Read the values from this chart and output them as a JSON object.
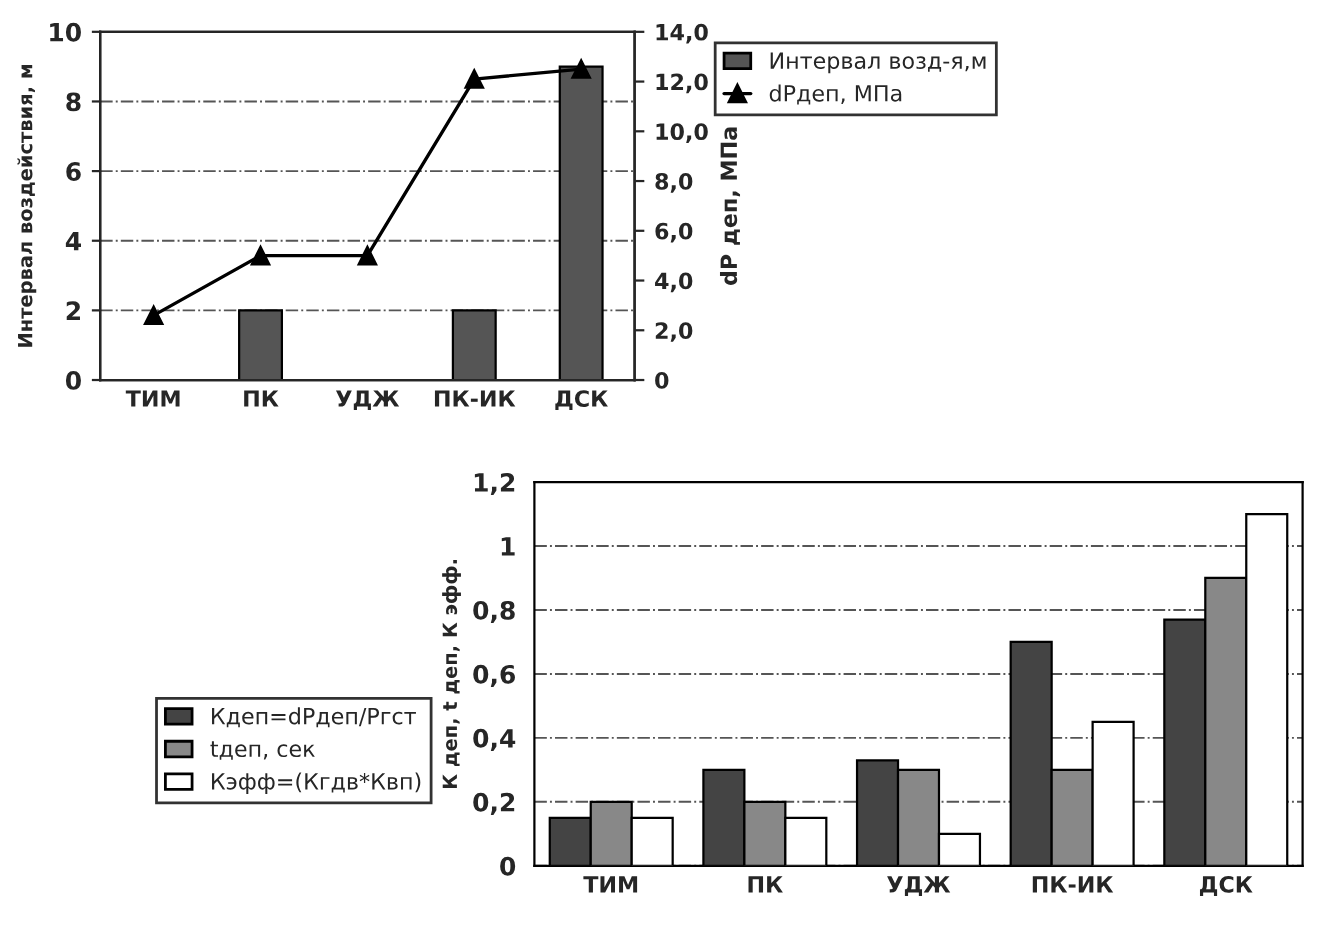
{
  "chart_data": [
    {
      "type": "bar",
      "categories": [
        "ТИМ",
        "ПК",
        "УДЖ",
        "ПК-ИК",
        "ДСК"
      ],
      "ylabel": "Интервал воздействия, м",
      "y2label": "dP деп, МПа",
      "ylim": [
        0,
        10
      ],
      "yticks": [
        0,
        2,
        4,
        6,
        8,
        10
      ],
      "y2lim": [
        0,
        14
      ],
      "y2ticks": [
        0,
        {
          "value": 2,
          "label": "2,0"
        },
        {
          "value": 4,
          "label": "4,0"
        },
        {
          "value": 6,
          "label": "6,0"
        },
        {
          "value": 8,
          "label": "8,0"
        },
        {
          "value": 10,
          "label": "10,0"
        },
        {
          "value": 12,
          "label": "12,0"
        },
        {
          "value": 14,
          "label": "14,0"
        }
      ],
      "series": [
        {
          "name": "Интервал возд-я,м",
          "type": "bar",
          "color": "#555555",
          "values": [
            null,
            2,
            null,
            2,
            9
          ]
        },
        {
          "name": "dPдеп, МПа",
          "type": "line",
          "axis": "y2",
          "color": "#000000",
          "marker": "triangle",
          "values": [
            2.6,
            5.0,
            5.0,
            12.1,
            12.5
          ]
        }
      ],
      "grid": "y",
      "legend": "right"
    },
    {
      "type": "bar",
      "categories": [
        "ТИМ",
        "ПК",
        "УДЖ",
        "ПК-ИК",
        "ДСК"
      ],
      "ylabel": "К деп, t деп, К эфф.",
      "ylim": [
        0,
        1.2
      ],
      "yticks": [
        0,
        {
          "value": 0.2,
          "label": "0,2"
        },
        {
          "value": 0.4,
          "label": "0,4"
        },
        {
          "value": 0.6,
          "label": "0,6"
        },
        {
          "value": 0.8,
          "label": "0,8"
        },
        1,
        {
          "value": 1.2,
          "label": "1,2"
        }
      ],
      "series": [
        {
          "name": "Кдеп=dPдеп/Pгст",
          "color": "#444444",
          "values": [
            0.15,
            0.3,
            0.33,
            0.7,
            0.77
          ]
        },
        {
          "name": "tдеп, сек",
          "color": "#888888",
          "values": [
            0.2,
            0.2,
            0.3,
            0.3,
            0.9
          ]
        },
        {
          "name": "Кэфф=(Кгдв*Квп)",
          "color": "#ffffff",
          "values": [
            0.15,
            0.15,
            0.1,
            0.45,
            1.1
          ]
        }
      ],
      "grid": "y",
      "legend": "left"
    }
  ]
}
